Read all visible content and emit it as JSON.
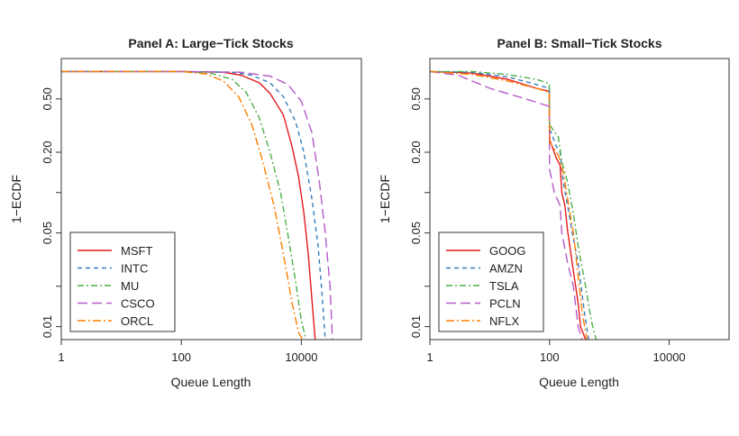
{
  "chart_data": [
    {
      "type": "line",
      "title": "Panel A: Large−Tick Stocks",
      "xlabel": "Queue Length",
      "ylabel": "1−ECDF",
      "xscale": "log",
      "yscale": "log",
      "xlim": [
        1,
        100000
      ],
      "ylim": [
        0.008,
        1.0
      ],
      "xticks": [
        {
          "v": 1,
          "label": "1"
        },
        {
          "v": 100,
          "label": "100"
        },
        {
          "v": 10000,
          "label": "10000"
        }
      ],
      "yticks": [
        {
          "v": 0.01,
          "label": "0.01"
        },
        {
          "v": 0.02,
          "label": ""
        },
        {
          "v": 0.05,
          "label": "0.05"
        },
        {
          "v": 0.1,
          "label": ""
        },
        {
          "v": 0.2,
          "label": "0.20"
        },
        {
          "v": 0.5,
          "label": "0.50"
        }
      ],
      "legend_position": "bottom-left",
      "series": [
        {
          "name": "MSFT",
          "color": "#e41a1c",
          "dash": "",
          "points": [
            [
              1,
              0.8
            ],
            [
              100,
              0.8
            ],
            [
              500,
              0.79
            ],
            [
              1000,
              0.75
            ],
            [
              2000,
              0.66
            ],
            [
              3000,
              0.55
            ],
            [
              5000,
              0.38
            ],
            [
              7000,
              0.22
            ],
            [
              9000,
              0.13
            ],
            [
              11000,
              0.07
            ],
            [
              13000,
              0.035
            ],
            [
              15000,
              0.016
            ],
            [
              17000,
              0.008
            ]
          ]
        },
        {
          "name": "INTC",
          "color": "#377eb8",
          "dash": "5,4",
          "points": [
            [
              1,
              0.8
            ],
            [
              100,
              0.8
            ],
            [
              700,
              0.79
            ],
            [
              1500,
              0.75
            ],
            [
              3000,
              0.66
            ],
            [
              5000,
              0.52
            ],
            [
              8000,
              0.34
            ],
            [
              11000,
              0.2
            ],
            [
              15000,
              0.09
            ],
            [
              19000,
              0.04
            ],
            [
              22000,
              0.018
            ],
            [
              25000,
              0.008
            ]
          ]
        },
        {
          "name": "MU",
          "color": "#4daf4a",
          "dash": "7,3,2,3",
          "points": [
            [
              1,
              0.8
            ],
            [
              100,
              0.8
            ],
            [
              300,
              0.78
            ],
            [
              700,
              0.7
            ],
            [
              1200,
              0.56
            ],
            [
              2000,
              0.36
            ],
            [
              3000,
              0.2
            ],
            [
              4500,
              0.1
            ],
            [
              6000,
              0.048
            ],
            [
              8000,
              0.022
            ],
            [
              10000,
              0.011
            ],
            [
              12000,
              0.008
            ]
          ]
        },
        {
          "name": "CSCO",
          "color": "#b45ac8",
          "dash": "11,5",
          "points": [
            [
              1,
              0.8
            ],
            [
              100,
              0.8
            ],
            [
              1000,
              0.79
            ],
            [
              3000,
              0.74
            ],
            [
              6000,
              0.64
            ],
            [
              10000,
              0.48
            ],
            [
              15000,
              0.28
            ],
            [
              20000,
              0.12
            ],
            [
              25000,
              0.05
            ],
            [
              30000,
              0.02
            ],
            [
              33000,
              0.008
            ]
          ]
        },
        {
          "name": "ORCL",
          "color": "#ff7f00",
          "dash": "9,3,2,3",
          "points": [
            [
              1,
              0.8
            ],
            [
              100,
              0.8
            ],
            [
              250,
              0.77
            ],
            [
              500,
              0.68
            ],
            [
              900,
              0.52
            ],
            [
              1500,
              0.32
            ],
            [
              2200,
              0.18
            ],
            [
              3500,
              0.08
            ],
            [
              5000,
              0.035
            ],
            [
              7000,
              0.015
            ],
            [
              9000,
              0.009
            ],
            [
              10500,
              0.008
            ]
          ]
        }
      ]
    },
    {
      "type": "line",
      "title": "Panel B: Small−Tick Stocks",
      "xlabel": "Queue Length",
      "ylabel": "1−ECDF",
      "xscale": "log",
      "yscale": "log",
      "xlim": [
        1,
        100000
      ],
      "ylim": [
        0.008,
        1.0
      ],
      "xticks": [
        {
          "v": 1,
          "label": "1"
        },
        {
          "v": 100,
          "label": "100"
        },
        {
          "v": 10000,
          "label": "10000"
        }
      ],
      "yticks": [
        {
          "v": 0.01,
          "label": "0.01"
        },
        {
          "v": 0.02,
          "label": ""
        },
        {
          "v": 0.05,
          "label": "0.05"
        },
        {
          "v": 0.1,
          "label": ""
        },
        {
          "v": 0.2,
          "label": "0.20"
        },
        {
          "v": 0.5,
          "label": "0.50"
        }
      ],
      "legend_position": "bottom-left",
      "series": [
        {
          "name": "GOOG",
          "color": "#e41a1c",
          "dash": "",
          "points": [
            [
              1,
              0.8
            ],
            [
              5,
              0.78
            ],
            [
              20,
              0.7
            ],
            [
              60,
              0.6
            ],
            [
              99,
              0.57
            ],
            [
              100,
              0.25
            ],
            [
              130,
              0.18
            ],
            [
              150,
              0.16
            ],
            [
              160,
              0.1
            ],
            [
              180,
              0.08
            ],
            [
              200,
              0.052
            ],
            [
              250,
              0.026
            ],
            [
              300,
              0.015
            ],
            [
              330,
              0.01
            ],
            [
              400,
              0.008
            ]
          ]
        },
        {
          "name": "AMZN",
          "color": "#377eb8",
          "dash": "5,4",
          "points": [
            [
              1,
              0.8
            ],
            [
              5,
              0.79
            ],
            [
              20,
              0.73
            ],
            [
              60,
              0.64
            ],
            [
              99,
              0.6
            ],
            [
              100,
              0.3
            ],
            [
              130,
              0.22
            ],
            [
              150,
              0.2
            ],
            [
              170,
              0.12
            ],
            [
              200,
              0.08
            ],
            [
              240,
              0.05
            ],
            [
              300,
              0.03
            ],
            [
              380,
              0.013
            ],
            [
              450,
              0.008
            ]
          ]
        },
        {
          "name": "TSLA",
          "color": "#4daf4a",
          "dash": "7,3,2,3",
          "points": [
            [
              1,
              0.8
            ],
            [
              5,
              0.8
            ],
            [
              20,
              0.76
            ],
            [
              60,
              0.7
            ],
            [
              99,
              0.65
            ],
            [
              100,
              0.32
            ],
            [
              140,
              0.26
            ],
            [
              160,
              0.17
            ],
            [
              200,
              0.12
            ],
            [
              250,
              0.07
            ],
            [
              300,
              0.04
            ],
            [
              400,
              0.02
            ],
            [
              500,
              0.011
            ],
            [
              600,
              0.008
            ]
          ]
        },
        {
          "name": "PCLN",
          "color": "#b45ac8",
          "dash": "11,5",
          "points": [
            [
              1,
              0.8
            ],
            [
              3,
              0.75
            ],
            [
              10,
              0.6
            ],
            [
              40,
              0.5
            ],
            [
              99,
              0.44
            ],
            [
              100,
              0.15
            ],
            [
              120,
              0.1
            ],
            [
              150,
              0.08
            ],
            [
              160,
              0.05
            ],
            [
              200,
              0.03
            ],
            [
              250,
              0.02
            ],
            [
              300,
              0.01
            ],
            [
              350,
              0.008
            ]
          ]
        },
        {
          "name": "NFLX",
          "color": "#ff7f00",
          "dash": "9,3,2,3",
          "points": [
            [
              1,
              0.8
            ],
            [
              5,
              0.76
            ],
            [
              20,
              0.68
            ],
            [
              60,
              0.6
            ],
            [
              99,
              0.56
            ],
            [
              100,
              0.24
            ],
            [
              140,
              0.19
            ],
            [
              170,
              0.14
            ],
            [
              200,
              0.09
            ],
            [
              250,
              0.05
            ],
            [
              300,
              0.024
            ],
            [
              350,
              0.013
            ],
            [
              420,
              0.008
            ]
          ]
        }
      ]
    }
  ]
}
